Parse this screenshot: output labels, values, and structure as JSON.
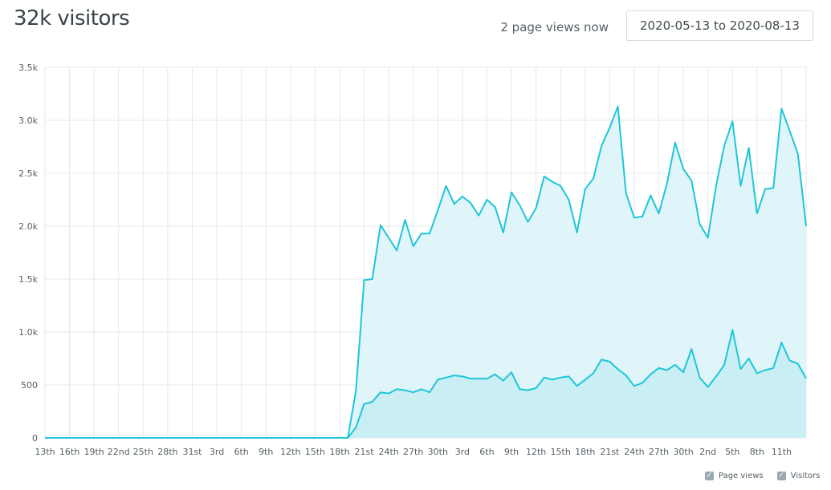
{
  "header": {
    "title": "32k visitors",
    "now_text": "2 page views now",
    "date_range": "2020-05-13 to 2020-08-13"
  },
  "legend": [
    {
      "label": "Page views",
      "checked": true
    },
    {
      "label": "Visitors",
      "checked": true
    }
  ],
  "colors": {
    "line": "#1ec6d9",
    "area_pageviews": "#e0f5fa",
    "area_visitors": "#c9eef4",
    "grid": "#e6e8e9",
    "checkbox": "#9aa8b4"
  },
  "chart_data": {
    "type": "area",
    "ylim": [
      0,
      3500
    ],
    "yticks": [
      0,
      500,
      1000,
      1500,
      2000,
      2500,
      3000,
      3500
    ],
    "ytick_labels": [
      "0",
      "500",
      "1.0k",
      "1.5k",
      "2.0k",
      "2.5k",
      "3.0k",
      "3.5k"
    ],
    "x_start": "2020-05-13",
    "xtick_labels": [
      "13th",
      "16th",
      "19th",
      "22nd",
      "25th",
      "28th",
      "31st",
      "3rd",
      "6th",
      "9th",
      "12th",
      "15th",
      "18th",
      "21st",
      "24th",
      "27th",
      "30th",
      "3rd",
      "6th",
      "9th",
      "12th",
      "15th",
      "18th",
      "21st",
      "24th",
      "27th",
      "30th",
      "2nd",
      "5th",
      "8th",
      "11th"
    ],
    "series": [
      {
        "name": "Page views",
        "values": [
          0,
          0,
          0,
          0,
          0,
          0,
          0,
          0,
          0,
          0,
          0,
          0,
          0,
          0,
          0,
          0,
          0,
          0,
          0,
          0,
          0,
          0,
          0,
          0,
          0,
          0,
          0,
          0,
          0,
          0,
          0,
          0,
          0,
          0,
          0,
          0,
          0,
          0,
          450,
          1490,
          1500,
          2010,
          1890,
          1770,
          2060,
          1810,
          1930,
          1930,
          2150,
          2380,
          2210,
          2280,
          2220,
          2100,
          2250,
          2180,
          1940,
          2320,
          2200,
          2040,
          2170,
          2470,
          2420,
          2380,
          2250,
          1940,
          2350,
          2450,
          2760,
          2930,
          3130,
          2310,
          2080,
          2090,
          2290,
          2120,
          2400,
          2790,
          2540,
          2430,
          2020,
          1890,
          2380,
          2760,
          2990,
          2380,
          2740,
          2120,
          2350,
          2360,
          3110,
          2900,
          2680,
          2000
        ]
      },
      {
        "name": "Visitors",
        "values": [
          0,
          0,
          0,
          0,
          0,
          0,
          0,
          0,
          0,
          0,
          0,
          0,
          0,
          0,
          0,
          0,
          0,
          0,
          0,
          0,
          0,
          0,
          0,
          0,
          0,
          0,
          0,
          0,
          0,
          0,
          0,
          0,
          0,
          0,
          0,
          0,
          0,
          0,
          100,
          320,
          340,
          430,
          420,
          460,
          450,
          430,
          460,
          430,
          550,
          570,
          590,
          580,
          560,
          560,
          560,
          600,
          540,
          620,
          460,
          450,
          470,
          570,
          550,
          570,
          580,
          490,
          550,
          610,
          740,
          720,
          650,
          590,
          490,
          520,
          600,
          660,
          640,
          690,
          620,
          840,
          570,
          480,
          580,
          690,
          1020,
          650,
          750,
          610,
          640,
          660,
          900,
          730,
          700,
          560
        ]
      }
    ]
  }
}
